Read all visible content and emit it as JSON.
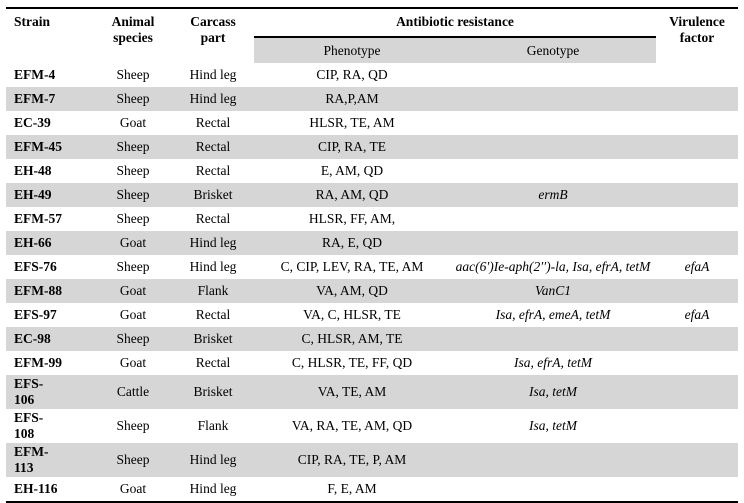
{
  "colors": {
    "shaded_row": "#d6d6d6",
    "border": "#000000",
    "background": "#ffffff"
  },
  "table": {
    "headers": {
      "strain": "Strain",
      "animal_species": "Animal species",
      "carcass_part": "Carcass part",
      "antibiotic_resistance": "Antibiotic resistance",
      "phenotype": "Phenotype",
      "genotype": "Genotype",
      "virulence_factor": "Virulence factor"
    },
    "rows": [
      {
        "strain": "EFM-4",
        "species": "Sheep",
        "part": "Hind leg",
        "phenotype": "CIP, RA, QD",
        "genotype": "",
        "virulence": "",
        "shaded": false
      },
      {
        "strain": "EFM-7",
        "species": "Sheep",
        "part": "Hind leg",
        "phenotype": "RA,P,AM",
        "genotype": "",
        "virulence": "",
        "shaded": true
      },
      {
        "strain": "EC-39",
        "species": "Goat",
        "part": "Rectal",
        "phenotype": "HLSR, TE, AM",
        "genotype": "",
        "virulence": "",
        "shaded": false
      },
      {
        "strain": "EFM-45",
        "species": "Sheep",
        "part": "Rectal",
        "phenotype": "CIP, RA, TE",
        "genotype": "",
        "virulence": "",
        "shaded": true
      },
      {
        "strain": "EH-48",
        "species": "Sheep",
        "part": "Rectal",
        "phenotype": "E, AM, QD",
        "genotype": "",
        "virulence": "",
        "shaded": false
      },
      {
        "strain": "EH-49",
        "species": "Sheep",
        "part": "Brisket",
        "phenotype": "RA, AM, QD",
        "genotype": "ermB",
        "virulence": "",
        "shaded": true
      },
      {
        "strain": "EFM-57",
        "species": "Sheep",
        "part": "Rectal",
        "phenotype": "HLSR, FF, AM,",
        "genotype": "",
        "virulence": "",
        "shaded": false
      },
      {
        "strain": "EH-66",
        "species": "Goat",
        "part": "Hind leg",
        "phenotype": "RA, E, QD",
        "genotype": "",
        "virulence": "",
        "shaded": true
      },
      {
        "strain": "EFS-76",
        "species": "Sheep",
        "part": "Hind leg",
        "phenotype": "C, CIP, LEV, RA, TE, AM",
        "genotype": "aac(6′)Ie-aph(2′′)-la, Isa, efrA, tetM",
        "virulence": "efaA",
        "shaded": false
      },
      {
        "strain": "EFM-88",
        "species": "Goat",
        "part": "Flank",
        "phenotype": "VA, AM, QD",
        "genotype": "VanC1",
        "virulence": "",
        "shaded": true
      },
      {
        "strain": "EFS-97",
        "species": "Goat",
        "part": "Rectal",
        "phenotype": "VA, C, HLSR, TE",
        "genotype": "Isa, efrA, emeA, tetM",
        "virulence": "efaA",
        "shaded": false
      },
      {
        "strain": "EC-98",
        "species": "Sheep",
        "part": "Brisket",
        "phenotype": "C, HLSR, AM, TE",
        "genotype": "",
        "virulence": "",
        "shaded": true
      },
      {
        "strain": "EFM-99",
        "species": "Goat",
        "part": "Rectal",
        "phenotype": "C, HLSR, TE, FF, QD",
        "genotype": "Isa, efrA, tetM",
        "virulence": "",
        "shaded": false
      },
      {
        "strain": "EFS-106",
        "species": "Cattle",
        "part": "Brisket",
        "phenotype": "VA, TE, AM",
        "genotype": "Isa, tetM",
        "virulence": "",
        "shaded": true
      },
      {
        "strain": "EFS-108",
        "species": "Sheep",
        "part": "Flank",
        "phenotype": "VA, RA, TE, AM, QD",
        "genotype": "Isa, tetM",
        "virulence": "",
        "shaded": false
      },
      {
        "strain": "EFM-113",
        "species": "Sheep",
        "part": "Hind leg",
        "phenotype": "CIP, RA, TE, P, AM",
        "genotype": "",
        "virulence": "",
        "shaded": true
      },
      {
        "strain": "EH-116",
        "species": "Goat",
        "part": "Hind leg",
        "phenotype": "F, E, AM",
        "genotype": "",
        "virulence": "",
        "shaded": false
      }
    ]
  }
}
